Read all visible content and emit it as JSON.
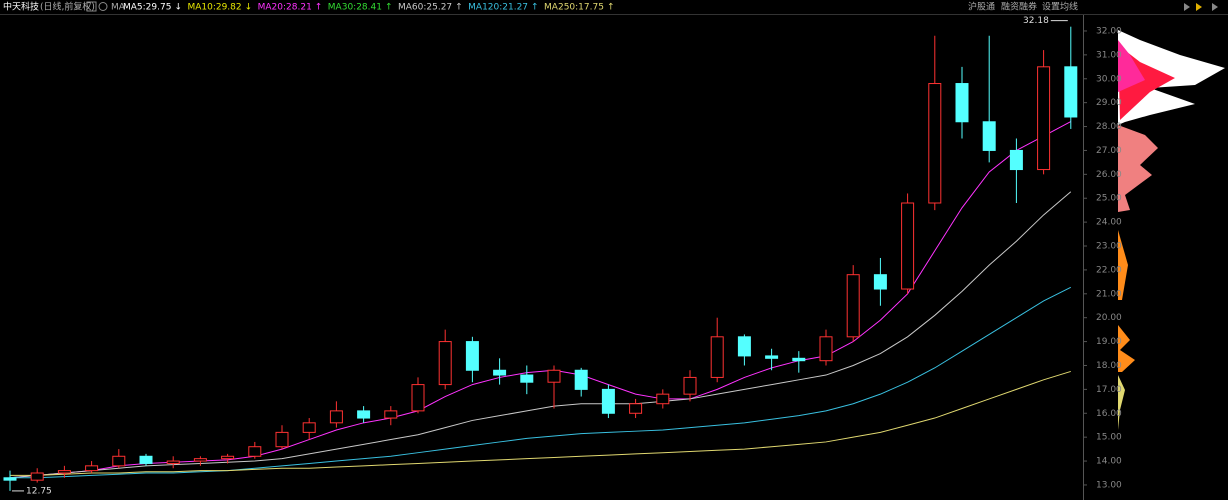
{
  "chart_data": {
    "type": "candlestick",
    "title": "中天科技",
    "subtitle": "(日线,前复权)",
    "ma_label": "MA",
    "toolbar": [
      "沪股通",
      "融资融券",
      "设置均线"
    ],
    "up_color": "#ff3232",
    "down_color": "#54ffff",
    "open": [
      13.3,
      13.2,
      13.5,
      13.6,
      13.8,
      14.2,
      13.9,
      14.0,
      14.1,
      14.2,
      14.6,
      15.2,
      15.6,
      16.1,
      15.8,
      16.1,
      17.2,
      19.0,
      17.8,
      17.6,
      17.3,
      17.8,
      17.0,
      16.0,
      16.4,
      16.8,
      17.5,
      19.2,
      18.4,
      18.3,
      18.2,
      19.2,
      21.8,
      21.2,
      24.8,
      29.8,
      28.2,
      27.0,
      26.2,
      30.5
    ],
    "high": [
      13.6,
      13.7,
      13.8,
      14.0,
      14.5,
      14.3,
      14.2,
      14.2,
      14.3,
      14.8,
      15.5,
      15.8,
      16.5,
      16.3,
      16.3,
      17.5,
      19.5,
      19.2,
      18.3,
      18.0,
      18.0,
      17.9,
      17.2,
      16.6,
      17.0,
      17.8,
      20.0,
      19.3,
      18.7,
      18.6,
      19.5,
      22.2,
      22.5,
      25.2,
      31.8,
      30.5,
      31.8,
      27.5,
      31.2,
      32.18
    ],
    "low": [
      12.75,
      13.1,
      13.3,
      13.5,
      13.7,
      13.8,
      13.7,
      13.8,
      13.9,
      14.1,
      14.5,
      14.9,
      15.4,
      15.6,
      15.5,
      16.0,
      17.0,
      17.3,
      17.2,
      16.8,
      16.2,
      16.7,
      15.8,
      15.8,
      16.2,
      16.5,
      17.3,
      18.0,
      17.8,
      17.7,
      18.0,
      19.0,
      20.5,
      21.0,
      24.5,
      27.5,
      26.5,
      24.8,
      26.0,
      27.9
    ],
    "close": [
      13.2,
      13.5,
      13.6,
      13.8,
      14.2,
      13.9,
      14.0,
      14.1,
      14.2,
      14.6,
      15.2,
      15.6,
      16.1,
      15.8,
      16.1,
      17.2,
      19.0,
      17.8,
      17.6,
      17.3,
      17.8,
      17.0,
      16.0,
      16.4,
      16.8,
      17.5,
      19.2,
      18.4,
      18.3,
      18.2,
      19.2,
      21.8,
      21.2,
      24.8,
      29.8,
      28.2,
      27.0,
      26.2,
      30.5,
      28.4
    ],
    "series": [
      {
        "name": "MA5:29.75",
        "arrow": "↓",
        "color": "#ffffff"
      },
      {
        "name": "MA10:29.82",
        "arrow": "↓",
        "color": "#e8e800"
      },
      {
        "name": "MA20:28.21",
        "arrow": "↑",
        "color": "#ff33ff",
        "values": [
          13.3,
          13.4,
          13.5,
          13.6,
          13.8,
          13.9,
          13.95,
          14.0,
          14.05,
          14.2,
          14.5,
          14.9,
          15.3,
          15.6,
          15.8,
          16.1,
          16.7,
          17.2,
          17.5,
          17.7,
          17.8,
          17.6,
          17.2,
          16.8,
          16.6,
          16.6,
          17.0,
          17.5,
          17.9,
          18.2,
          18.4,
          19.0,
          19.9,
          21.0,
          22.8,
          24.6,
          26.1,
          27.0,
          27.6,
          28.21
        ]
      },
      {
        "name": "MA30:28.41",
        "arrow": "↑",
        "color": "#33dd33"
      },
      {
        "name": "MA60:25.27",
        "arrow": "↑",
        "color": "#c8c8c8",
        "values": [
          13.3,
          13.4,
          13.5,
          13.6,
          13.7,
          13.8,
          13.85,
          13.9,
          13.95,
          14.0,
          14.1,
          14.3,
          14.5,
          14.7,
          14.9,
          15.1,
          15.4,
          15.7,
          15.9,
          16.1,
          16.3,
          16.4,
          16.4,
          16.4,
          16.5,
          16.6,
          16.8,
          17.0,
          17.2,
          17.4,
          17.6,
          18.0,
          18.5,
          19.2,
          20.1,
          21.1,
          22.2,
          23.2,
          24.3,
          25.27
        ]
      },
      {
        "name": "MA120:21.27",
        "arrow": "↑",
        "color": "#39c0e0",
        "values": [
          13.3,
          13.3,
          13.35,
          13.4,
          13.45,
          13.5,
          13.5,
          13.55,
          13.6,
          13.7,
          13.8,
          13.9,
          14.0,
          14.1,
          14.2,
          14.35,
          14.5,
          14.65,
          14.8,
          14.95,
          15.05,
          15.15,
          15.2,
          15.25,
          15.3,
          15.4,
          15.5,
          15.6,
          15.75,
          15.9,
          16.1,
          16.4,
          16.8,
          17.3,
          17.9,
          18.6,
          19.3,
          20.0,
          20.7,
          21.27
        ]
      },
      {
        "name": "MA250:17.75",
        "arrow": "↑",
        "color": "#e0d870",
        "values": [
          13.4,
          13.4,
          13.45,
          13.5,
          13.5,
          13.55,
          13.55,
          13.6,
          13.6,
          13.65,
          13.7,
          13.7,
          13.75,
          13.8,
          13.85,
          13.9,
          13.95,
          14.0,
          14.05,
          14.1,
          14.15,
          14.2,
          14.25,
          14.3,
          14.35,
          14.4,
          14.45,
          14.5,
          14.6,
          14.7,
          14.8,
          15.0,
          15.2,
          15.5,
          15.8,
          16.2,
          16.6,
          17.0,
          17.4,
          17.75
        ]
      }
    ],
    "annotations": [
      {
        "text": "32.18",
        "value": 32.18
      },
      {
        "text": "12.75",
        "value": 12.75
      }
    ],
    "ylim": [
      12.37,
      32.25
    ],
    "yticks": [
      {
        "value": 13,
        "label": "13.00"
      },
      {
        "value": 14,
        "label": "14.00"
      },
      {
        "value": 15,
        "label": "15.00"
      },
      {
        "value": 16,
        "label": "16.00"
      },
      {
        "value": 17,
        "label": "17.00"
      },
      {
        "value": 18,
        "label": "18.00"
      },
      {
        "value": 19,
        "label": "19.00"
      },
      {
        "value": 20,
        "label": "20.00"
      },
      {
        "value": 21,
        "label": "21.00"
      },
      {
        "value": 22,
        "label": "22.00"
      },
      {
        "value": 23,
        "label": "23.00"
      },
      {
        "value": 24,
        "label": "24.00"
      },
      {
        "value": 25,
        "label": "25.00"
      },
      {
        "value": 26,
        "label": "26.00"
      },
      {
        "value": 27,
        "label": "27.00"
      },
      {
        "value": 28,
        "label": "28.00"
      },
      {
        "value": 29,
        "label": "29.00"
      },
      {
        "value": 30,
        "label": "30.00"
      },
      {
        "value": 31,
        "label": "31.00"
      },
      {
        "value": 32,
        "label": "32.00"
      }
    ]
  }
}
